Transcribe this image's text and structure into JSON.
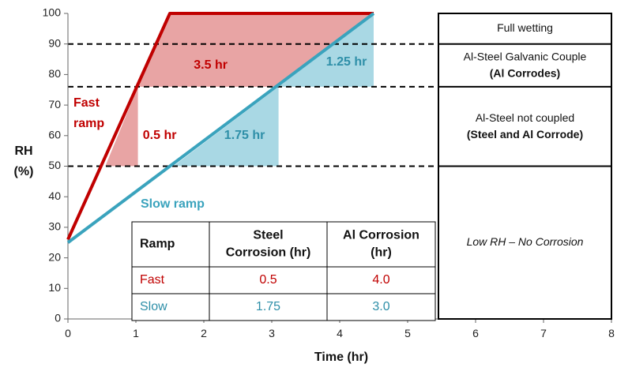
{
  "chart_data": {
    "type": "line",
    "x_axis": {
      "label": "Time (hr)",
      "range": [
        0,
        8
      ],
      "ticks": [
        0,
        1,
        2,
        3,
        4,
        5,
        6,
        7,
        8
      ]
    },
    "y_axis": {
      "label_line1": "RH",
      "label_line2": "(%)",
      "range": [
        0,
        100
      ],
      "ticks": [
        0,
        10,
        20,
        30,
        40,
        50,
        60,
        70,
        80,
        90,
        100
      ]
    },
    "series": [
      {
        "name": "Fast ramp",
        "label_line1": "Fast",
        "label_line2": "ramp",
        "color": "#c00000",
        "points": [
          [
            0,
            26
          ],
          [
            1.5,
            100
          ],
          [
            4.5,
            100
          ]
        ]
      },
      {
        "name": "Slow ramp",
        "label": "Slow ramp",
        "color": "#3aa3bd",
        "points": [
          [
            0,
            25
          ],
          [
            4.5,
            100
          ]
        ]
      }
    ],
    "thresholds": [
      50,
      76,
      90
    ],
    "regions": [
      {
        "line1": "Full wetting",
        "line2": "",
        "bold2": false,
        "italic": false,
        "y_range": [
          90,
          100
        ]
      },
      {
        "line1": "Al-Steel Galvanic Couple",
        "line2": "(Al Corrodes)",
        "bold2": true,
        "italic": false,
        "y_range": [
          76,
          90
        ]
      },
      {
        "line1": "Al-Steel not coupled",
        "line2": "(Steel and Al Corrode)",
        "bold2": true,
        "italic": false,
        "y_range": [
          50,
          76
        ]
      },
      {
        "line1": "Low RH – No Corrosion",
        "line2": "",
        "bold2": false,
        "italic": true,
        "y_range": [
          0,
          50
        ]
      }
    ],
    "shaded_areas": [
      {
        "color": "#e8a4a4",
        "points": [
          [
            1.03,
            50
          ],
          [
            1.03,
            76
          ],
          [
            0.55,
            50
          ]
        ]
      },
      {
        "color": "#e8a4a4",
        "points": [
          [
            1.03,
            76
          ],
          [
            1.5,
            100
          ],
          [
            4.5,
            100
          ],
          [
            3.1,
            76
          ]
        ]
      },
      {
        "color": "#a9d8e4",
        "points": [
          [
            3.1,
            50
          ],
          [
            3.1,
            76
          ],
          [
            1.55,
            50
          ]
        ]
      },
      {
        "color": "#a9d8e4",
        "points": [
          [
            4.5,
            76
          ],
          [
            4.5,
            100
          ],
          [
            3.1,
            76
          ]
        ]
      }
    ],
    "annotations": [
      {
        "text": "3.5 hr",
        "color": "#c00000",
        "x": 2.1,
        "y": 83
      },
      {
        "text": "0.5 hr",
        "color": "#c00000",
        "x": 1.35,
        "y": 60
      },
      {
        "text": "1.75 hr",
        "color": "#2e8fa8",
        "x": 2.6,
        "y": 60
      },
      {
        "text": "1.25 hr",
        "color": "#2e8fa8",
        "x": 4.1,
        "y": 84
      }
    ],
    "table": {
      "headers": [
        [
          "Ramp"
        ],
        [
          "Steel",
          "Corrosion (hr)"
        ],
        [
          "Al Corrosion",
          "(hr)"
        ]
      ],
      "rows": [
        {
          "color": "#c00000",
          "cells": [
            "Fast",
            "0.5",
            "4.0"
          ]
        },
        {
          "color": "#2e8fa8",
          "cells": [
            "Slow",
            "1.75",
            "3.0"
          ]
        }
      ]
    }
  }
}
